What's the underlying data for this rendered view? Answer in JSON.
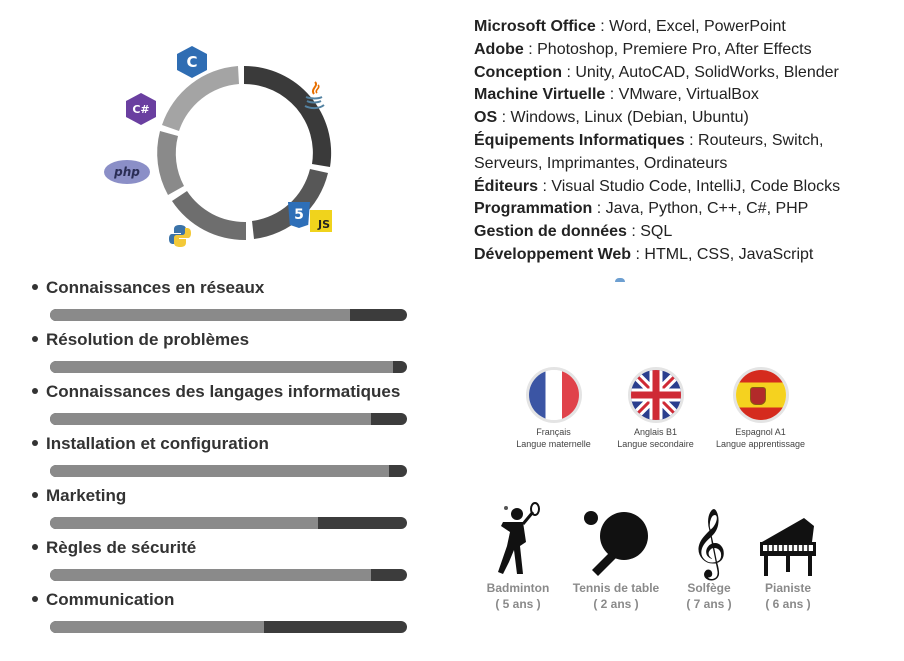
{
  "tech_icons": [
    {
      "name": "c-icon",
      "glyph": "C"
    },
    {
      "name": "csharp-icon",
      "glyph": "C#"
    },
    {
      "name": "php-icon",
      "glyph": "php"
    },
    {
      "name": "python-icon",
      "glyph": "python-logo"
    },
    {
      "name": "java-icon",
      "glyph": "java-logo"
    },
    {
      "name": "html5-icon",
      "glyph": "5"
    },
    {
      "name": "javascript-icon",
      "glyph": "JS"
    }
  ],
  "skills": [
    {
      "label": "Connaissances en réseaux",
      "level": 0.84
    },
    {
      "label": "Résolution de problèmes",
      "level": 0.96
    },
    {
      "label": "Connaissances des langages informatiques",
      "level": 0.9
    },
    {
      "label": "Installation et configuration",
      "level": 0.95
    },
    {
      "label": "Marketing",
      "level": 0.75
    },
    {
      "label": "Règles de sécurité",
      "level": 0.9
    },
    {
      "label": "Communication",
      "level": 0.6
    }
  ],
  "software": [
    {
      "key": "Microsoft Office",
      "value": " : Word, Excel, PowerPoint"
    },
    {
      "key": "Adobe",
      "value": " : Photoshop, Premiere Pro, After Effects"
    },
    {
      "key": "Conception",
      "value": " : Unity, AutoCAD, SolidWorks, Blender"
    },
    {
      "key": "Machine Virtuelle",
      "value": " : VMware, VirtualBox"
    },
    {
      "key": "OS",
      "value": " : Windows, Linux (Debian, Ubuntu)"
    },
    {
      "key": "Équipements Informatiques",
      "value": " : Routeurs, Switch,"
    },
    {
      "key": "",
      "value": "Serveurs, Imprimantes, Ordinateurs"
    },
    {
      "key": "Éditeurs",
      "value": " : Visual Studio Code, IntelliJ, Code Blocks"
    },
    {
      "key": "Programmation",
      "value": " : Java, Python, C++, C#, PHP"
    },
    {
      "key": "Gestion de données",
      "value": " : SQL"
    },
    {
      "key": "Développement Web",
      "value": " : HTML, CSS, JavaScript"
    }
  ],
  "languages": {
    "fr": {
      "name": "Français",
      "level": "Langue maternelle"
    },
    "en": {
      "name": "Anglais B1",
      "level": "Langue secondaire"
    },
    "es": {
      "name": "Espagnol A1",
      "level": "Langue apprentissage"
    }
  },
  "hobbies": {
    "badminton": {
      "name": "Badminton",
      "duration": "( 5 ans )"
    },
    "tennis": {
      "name": "Tennis de table",
      "duration": "( 2 ans )"
    },
    "solfege": {
      "name": "Solfège",
      "duration": "( 7 ans )"
    },
    "piano": {
      "name": "Pianiste",
      "duration": "( 6 ans )"
    }
  },
  "colors": {
    "bar_track": "#3c3c3c",
    "bar_fill": "#8a8a8a",
    "ring": "#6b6b6b",
    "ring_dark": "#3a3a3a"
  }
}
